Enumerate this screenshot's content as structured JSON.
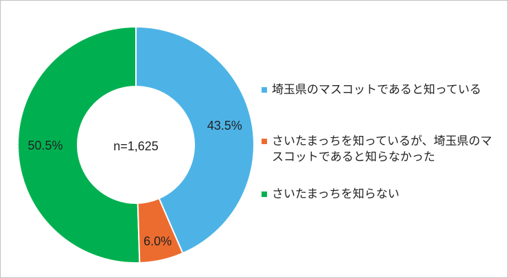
{
  "chart_data": {
    "type": "donut",
    "annotation": "n=1,625",
    "categories": [
      "埼玉県のマスコットであると知っている",
      "さいたまっちを知っているが、埼玉県のマスコットであると知らなかった",
      "さいたまっちを知らない"
    ],
    "values": [
      43.5,
      6.0,
      50.5
    ],
    "value_labels": [
      "43.5%",
      "6.0%",
      "50.5%"
    ],
    "colors": [
      "#4db3e6",
      "#ec6c2f",
      "#00b050"
    ]
  }
}
